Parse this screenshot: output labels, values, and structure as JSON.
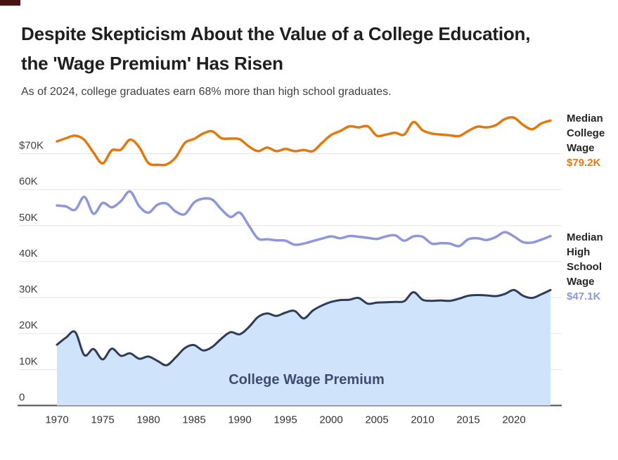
{
  "title_line1": "Despite Skepticism About the Value of a College Education,",
  "title_line2": "the 'Wage Premium' Has Risen",
  "subtitle": "As of 2024, college graduates earn 68% more than high school graduates.",
  "chart_data": {
    "type": "line",
    "title": "Despite Skepticism About the Value of a College Education, the 'Wage Premium' Has Risen",
    "subtitle": "As of 2024, college graduates earn 68% more than high school graduates.",
    "area_label": "College Wage Premium",
    "grid": "horizontal",
    "legend_position": "right-end-labels",
    "ylim": [
      0,
      83
    ],
    "xlim": [
      1970,
      2024
    ],
    "x": [
      1970,
      1971,
      1972,
      1973,
      1974,
      1975,
      1976,
      1977,
      1978,
      1979,
      1980,
      1981,
      1982,
      1983,
      1984,
      1985,
      1986,
      1987,
      1988,
      1989,
      1990,
      1991,
      1992,
      1993,
      1994,
      1995,
      1996,
      1997,
      1998,
      1999,
      2000,
      2001,
      2002,
      2003,
      2004,
      2005,
      2006,
      2007,
      2008,
      2009,
      2010,
      2011,
      2012,
      2013,
      2014,
      2015,
      2016,
      2017,
      2018,
      2019,
      2020,
      2021,
      2022,
      2023,
      2024
    ],
    "x_ticks": [
      "1970",
      "1975",
      "1980",
      "1985",
      "1990",
      "1995",
      "2000",
      "2005",
      "2010",
      "2015",
      "2020"
    ],
    "y_ticks": [
      {
        "label": "$70K",
        "value": 70
      },
      {
        "label": "60K",
        "value": 60
      },
      {
        "label": "50K",
        "value": 50
      },
      {
        "label": "40K",
        "value": 40
      },
      {
        "label": "30K",
        "value": 30
      },
      {
        "label": "20K",
        "value": 20
      },
      {
        "label": "10K",
        "value": 10
      },
      {
        "label": "0",
        "value": 0
      }
    ],
    "series": [
      {
        "name": "Median College Wage",
        "end_label": "$79.2K",
        "color": "#e2790f",
        "units": "thousand USD",
        "values": [
          73.4,
          74.3,
          75.0,
          73.8,
          70.3,
          67.3,
          70.9,
          71.1,
          73.9,
          71.8,
          67.4,
          66.9,
          67.0,
          69.0,
          73.0,
          74.1,
          75.6,
          76.2,
          74.3,
          74.2,
          74.0,
          72.0,
          70.7,
          71.7,
          70.7,
          71.3,
          70.7,
          71.0,
          70.7,
          73.0,
          75.2,
          76.3,
          77.6,
          77.3,
          77.6,
          75.0,
          75.3,
          75.8,
          75.3,
          78.8,
          76.5,
          75.6,
          75.3,
          75.1,
          74.9,
          76.3,
          77.5,
          77.3,
          77.9,
          79.6,
          80.0,
          78.0,
          76.8,
          78.4,
          79.2
        ]
      },
      {
        "name": "Median High School Wage",
        "end_label": "$47.1K",
        "color": "#8d97da",
        "units": "thousand USD",
        "values": [
          55.6,
          55.3,
          54.4,
          58.0,
          53.3,
          56.3,
          55.1,
          56.8,
          59.5,
          55.4,
          53.6,
          55.8,
          56.1,
          53.9,
          53.2,
          56.4,
          57.5,
          57.2,
          54.5,
          52.4,
          53.6,
          50.0,
          46.4,
          46.2,
          45.9,
          45.8,
          44.7,
          45.0,
          45.7,
          46.4,
          47.0,
          46.5,
          47.1,
          46.9,
          46.6,
          46.3,
          47.0,
          47.3,
          45.8,
          47.0,
          46.9,
          45.0,
          45.1,
          45.0,
          44.3,
          46.2,
          46.5,
          46.0,
          46.8,
          48.2,
          47.0,
          45.4,
          45.3,
          46.1,
          47.1
        ]
      },
      {
        "name": "College Wage Premium",
        "end_label": "",
        "color": "#2e3c59",
        "fill": "#cfe3fa",
        "area": true,
        "units": "thousand USD",
        "values": [
          16.9,
          18.9,
          20.4,
          14.0,
          15.7,
          12.8,
          15.8,
          13.8,
          14.5,
          13.0,
          13.6,
          12.4,
          11.2,
          13.4,
          16.0,
          16.8,
          15.3,
          16.3,
          18.6,
          20.4,
          19.8,
          21.8,
          24.6,
          25.6,
          24.9,
          25.8,
          26.3,
          24.2,
          26.4,
          27.8,
          28.8,
          29.3,
          29.4,
          29.9,
          28.3,
          28.6,
          28.7,
          28.8,
          29.0,
          31.5,
          29.4,
          29.1,
          29.2,
          29.1,
          29.7,
          30.5,
          30.7,
          30.6,
          30.4,
          31.0,
          32.1,
          30.5,
          29.9,
          30.9,
          32.1
        ]
      }
    ],
    "colors": {
      "college_line": "#e2790f",
      "high_school_line": "#8d97da",
      "premium_line": "#2e3c59",
      "premium_fill": "#cfe3fa",
      "premium_label_text": "#3d4c70",
      "gridline": "#e4e4e4",
      "zero_axis": "#4d4d4d",
      "tick_text": "#404040"
    }
  }
}
